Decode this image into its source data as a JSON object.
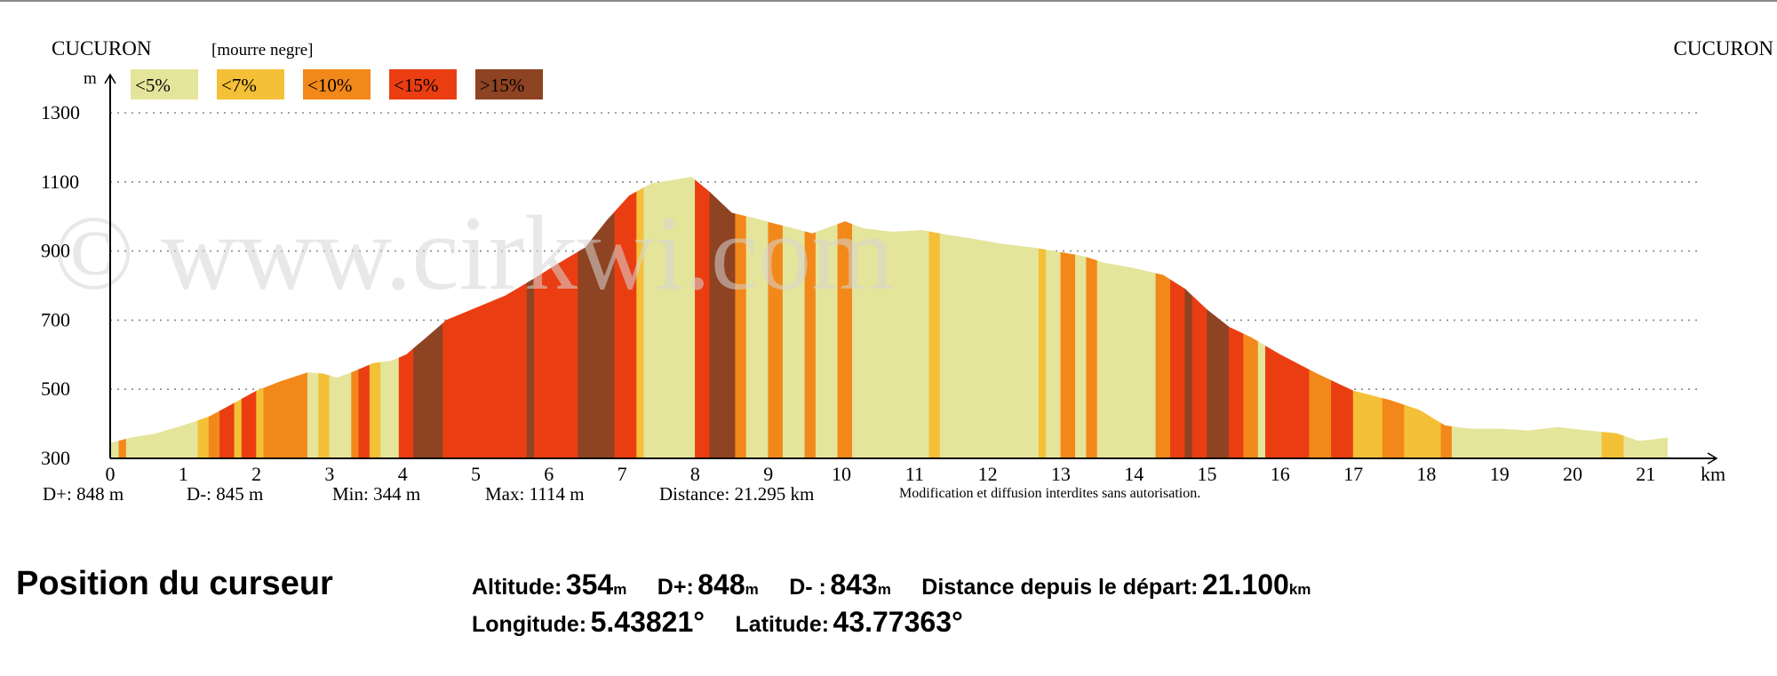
{
  "header": {
    "start_label": "CUCURON",
    "waypoint_label": "[mourre negre]",
    "end_label": "CUCURON",
    "watermark": "© www.cirkwi.com"
  },
  "legend": [
    {
      "label": "<5%",
      "color": "#e5e49b"
    },
    {
      "label": "<7%",
      "color": "#f4c037"
    },
    {
      "label": "<10%",
      "color": "#f2881a"
    },
    {
      "label": "<15%",
      "color": "#ea3e12"
    },
    {
      "label": ">15%",
      "color": "#8e4322"
    }
  ],
  "chart_data": {
    "type": "area",
    "xlabel": "km",
    "ylabel": "m",
    "xlim": [
      0,
      21.3
    ],
    "ylim": [
      300,
      1350
    ],
    "yticks": [
      300,
      500,
      700,
      900,
      1100,
      1300
    ],
    "xticks": [
      0,
      1,
      2,
      3,
      4,
      5,
      6,
      7,
      8,
      9,
      10,
      11,
      12,
      13,
      14,
      15,
      16,
      17,
      18,
      19,
      20,
      21
    ],
    "grid": "horizontal-dotted",
    "profile": [
      [
        0,
        344
      ],
      [
        0.3,
        360
      ],
      [
        0.6,
        370
      ],
      [
        1.0,
        395
      ],
      [
        1.35,
        420
      ],
      [
        1.7,
        460
      ],
      [
        2.0,
        495
      ],
      [
        2.3,
        520
      ],
      [
        2.7,
        548
      ],
      [
        2.9,
        545
      ],
      [
        3.1,
        533
      ],
      [
        3.3,
        548
      ],
      [
        3.6,
        575
      ],
      [
        3.85,
        582
      ],
      [
        4.05,
        600
      ],
      [
        4.3,
        645
      ],
      [
        4.6,
        700
      ],
      [
        5.0,
        735
      ],
      [
        5.4,
        770
      ],
      [
        5.8,
        820
      ],
      [
        6.1,
        860
      ],
      [
        6.5,
        910
      ],
      [
        6.8,
        990
      ],
      [
        7.1,
        1060
      ],
      [
        7.4,
        1095
      ],
      [
        7.7,
        1105
      ],
      [
        7.95,
        1114
      ],
      [
        8.2,
        1070
      ],
      [
        8.5,
        1010
      ],
      [
        8.8,
        995
      ],
      [
        9.1,
        978
      ],
      [
        9.35,
        965
      ],
      [
        9.6,
        950
      ],
      [
        9.85,
        970
      ],
      [
        10.05,
        985
      ],
      [
        10.3,
        965
      ],
      [
        10.7,
        955
      ],
      [
        11.1,
        960
      ],
      [
        11.4,
        948
      ],
      [
        11.8,
        935
      ],
      [
        12.2,
        920
      ],
      [
        12.6,
        910
      ],
      [
        12.9,
        900
      ],
      [
        13.3,
        885
      ],
      [
        13.6,
        865
      ],
      [
        14.0,
        850
      ],
      [
        14.4,
        830
      ],
      [
        14.7,
        790
      ],
      [
        15.0,
        730
      ],
      [
        15.3,
        680
      ],
      [
        15.6,
        650
      ],
      [
        16.0,
        600
      ],
      [
        16.5,
        545
      ],
      [
        17.0,
        495
      ],
      [
        17.5,
        468
      ],
      [
        17.9,
        440
      ],
      [
        18.25,
        395
      ],
      [
        18.6,
        385
      ],
      [
        19.0,
        385
      ],
      [
        19.4,
        380
      ],
      [
        19.8,
        390
      ],
      [
        20.2,
        380
      ],
      [
        20.6,
        372
      ],
      [
        20.9,
        350
      ],
      [
        21.1,
        354
      ],
      [
        21.295,
        360
      ]
    ],
    "slope_segments": [
      [
        0,
        0.12,
        1
      ],
      [
        0.12,
        0.22,
        3
      ],
      [
        0.22,
        0.55,
        1
      ],
      [
        0.55,
        1.2,
        1
      ],
      [
        1.2,
        1.35,
        2
      ],
      [
        1.35,
        1.5,
        3
      ],
      [
        1.5,
        1.7,
        4
      ],
      [
        1.7,
        1.8,
        2
      ],
      [
        1.8,
        2.0,
        4
      ],
      [
        2.0,
        2.1,
        2
      ],
      [
        2.1,
        2.3,
        3
      ],
      [
        2.3,
        2.7,
        3
      ],
      [
        2.7,
        2.85,
        1
      ],
      [
        2.85,
        3.0,
        2
      ],
      [
        3.0,
        3.3,
        1
      ],
      [
        3.3,
        3.4,
        3
      ],
      [
        3.4,
        3.55,
        4
      ],
      [
        3.55,
        3.7,
        2
      ],
      [
        3.7,
        3.95,
        1
      ],
      [
        3.95,
        4.15,
        4
      ],
      [
        4.15,
        4.55,
        5
      ],
      [
        4.55,
        5.7,
        4
      ],
      [
        5.7,
        5.8,
        5
      ],
      [
        5.8,
        6.4,
        4
      ],
      [
        6.4,
        6.9,
        5
      ],
      [
        6.9,
        7.2,
        4
      ],
      [
        7.2,
        7.3,
        2
      ],
      [
        7.3,
        8.0,
        1
      ],
      [
        8.0,
        8.2,
        4
      ],
      [
        8.2,
        8.55,
        5
      ],
      [
        8.55,
        8.7,
        3
      ],
      [
        8.7,
        9.0,
        1
      ],
      [
        9.0,
        9.2,
        3
      ],
      [
        9.2,
        9.5,
        1
      ],
      [
        9.5,
        9.65,
        3
      ],
      [
        9.65,
        9.95,
        1
      ],
      [
        9.95,
        10.15,
        3
      ],
      [
        10.15,
        11.2,
        1
      ],
      [
        11.2,
        11.35,
        2
      ],
      [
        11.35,
        12.7,
        1
      ],
      [
        12.7,
        12.8,
        2
      ],
      [
        12.8,
        13.0,
        1
      ],
      [
        13.0,
        13.2,
        3
      ],
      [
        13.2,
        13.35,
        1
      ],
      [
        13.35,
        13.5,
        3
      ],
      [
        13.5,
        14.3,
        1
      ],
      [
        14.3,
        14.5,
        3
      ],
      [
        14.5,
        14.7,
        4
      ],
      [
        14.7,
        14.8,
        5
      ],
      [
        14.8,
        15.0,
        4
      ],
      [
        15.0,
        15.3,
        5
      ],
      [
        15.3,
        15.5,
        4
      ],
      [
        15.5,
        15.7,
        3
      ],
      [
        15.7,
        15.8,
        1
      ],
      [
        15.8,
        16.4,
        4
      ],
      [
        16.4,
        16.7,
        3
      ],
      [
        16.7,
        17.0,
        4
      ],
      [
        17.0,
        17.4,
        2
      ],
      [
        17.4,
        17.7,
        3
      ],
      [
        17.7,
        18.2,
        2
      ],
      [
        18.2,
        18.35,
        3
      ],
      [
        18.35,
        20.4,
        1
      ],
      [
        20.4,
        20.7,
        2
      ],
      [
        20.7,
        21.295,
        1
      ]
    ]
  },
  "stats": {
    "dplus": "D+: 848 m",
    "dminus": "D-: 845 m",
    "min": "Min: 344 m",
    "max": "Max: 1114 m",
    "distance": "Distance: 21.295 km",
    "notice": "Modification et diffusion interdites sans autorisation."
  },
  "cursor": {
    "title": "Position du curseur",
    "altitude_label": "Altitude:",
    "altitude_value": "354",
    "altitude_unit": "m",
    "dplus_label": "D+:",
    "dplus_value": "848",
    "dplus_unit": "m",
    "dminus_label": "D- :",
    "dminus_value": "843",
    "dminus_unit": "m",
    "distance_label": "Distance depuis le départ:",
    "distance_value": "21.100",
    "distance_unit": "km",
    "longitude_label": "Longitude:",
    "longitude_value": "5.43821°",
    "latitude_label": "Latitude:",
    "latitude_value": "43.77363°"
  }
}
